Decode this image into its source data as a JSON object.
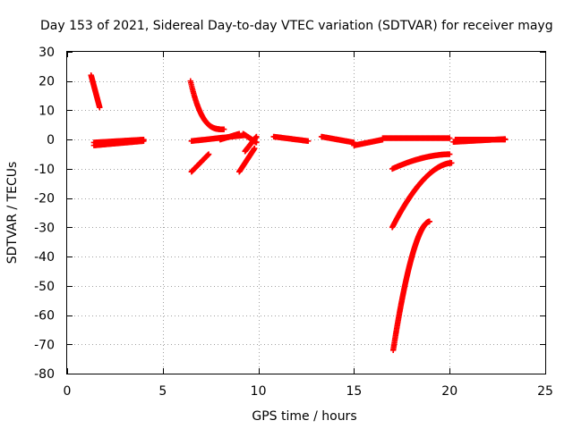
{
  "chart_data": {
    "type": "scatter",
    "title": "Day 153 of 2021, Sidereal Day-to-day VTEC variation (SDTVAR) for receiver mayg",
    "xlabel": "GPS time / hours",
    "ylabel": "SDTVAR / TECUs",
    "xlim": [
      0,
      25
    ],
    "ylim": [
      -80,
      30
    ],
    "xticks": [
      0,
      5,
      10,
      15,
      20,
      25
    ],
    "yticks": [
      30,
      20,
      10,
      0,
      -10,
      -20,
      -30,
      -40,
      -50,
      -60,
      -70,
      -80
    ],
    "grid": true,
    "marker": "+",
    "series": [
      {
        "name": "SDTVAR",
        "color": "#ff0000",
        "segments": [
          {
            "x_start": 1.25,
            "x_end": 1.7,
            "y_start": 22,
            "y_end": 11
          },
          {
            "x_start": 1.4,
            "x_end": 4.0,
            "y_start": -2,
            "y_end": -0.5
          },
          {
            "x_start": 1.4,
            "x_end": 4.0,
            "y_start": -1,
            "y_end": 0
          },
          {
            "x_start": 6.45,
            "x_end": 8.2,
            "y_start": 20,
            "y_end": 3.5,
            "shape": "decay"
          },
          {
            "x_start": 6.5,
            "x_end": 7.4,
            "y_start": -11,
            "y_end": -5
          },
          {
            "x_start": 6.5,
            "x_end": 9.3,
            "y_start": -0.5,
            "y_end": 1.5
          },
          {
            "x_start": 8.0,
            "x_end": 9.0,
            "y_start": 0,
            "y_end": 2
          },
          {
            "x_start": 9.0,
            "x_end": 9.8,
            "y_start": -11,
            "y_end": -3
          },
          {
            "x_start": 9.3,
            "x_end": 9.9,
            "y_start": -4,
            "y_end": 1
          },
          {
            "x_start": 9.2,
            "x_end": 9.9,
            "y_start": 2,
            "y_end": -1
          },
          {
            "x_start": 10.8,
            "x_end": 12.6,
            "y_start": 1,
            "y_end": -0.5
          },
          {
            "x_start": 13.3,
            "x_end": 15.0,
            "y_start": 1,
            "y_end": -1
          },
          {
            "x_start": 15.0,
            "x_end": 16.5,
            "y_start": -2,
            "y_end": 0
          },
          {
            "x_start": 16.5,
            "x_end": 20.0,
            "y_start": 0.5,
            "y_end": 0.5
          },
          {
            "x_start": 17.0,
            "x_end": 20.0,
            "y_start": -10,
            "y_end": -5,
            "shape": "concave"
          },
          {
            "x_start": 17.0,
            "x_end": 20.1,
            "y_start": -30,
            "y_end": -8,
            "shape": "concave"
          },
          {
            "x_start": 17.05,
            "x_end": 18.95,
            "y_start": -72,
            "y_end": -28,
            "shape": "concave"
          },
          {
            "x_start": 20.3,
            "x_end": 22.9,
            "y_start": 0,
            "y_end": 0
          },
          {
            "x_start": 20.2,
            "x_end": 22.9,
            "y_start": -0.8,
            "y_end": 0.2
          }
        ]
      }
    ]
  }
}
